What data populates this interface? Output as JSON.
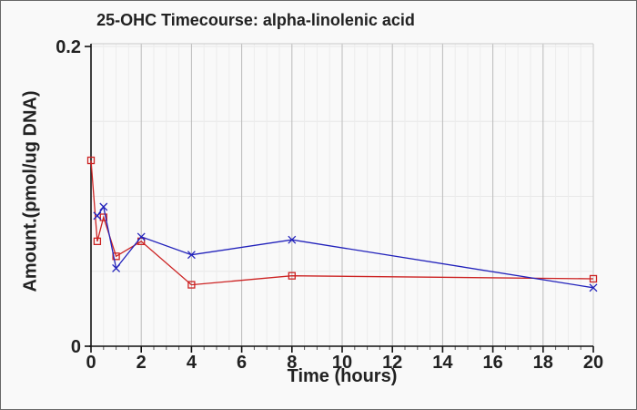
{
  "figure": {
    "background": "#f9f9f9",
    "border_color": "#686868"
  },
  "chart_data": {
    "type": "line",
    "title": "25-OHC Timecourse: alpha-linolenic acid",
    "xlabel": "Time (hours)",
    "ylabel": "Amount.(pmol/ug DNA)",
    "xlim": [
      0,
      20
    ],
    "ylim": [
      0,
      0.2
    ],
    "x_major_ticks": [
      0,
      2,
      4,
      6,
      8,
      10,
      12,
      14,
      16,
      18,
      20
    ],
    "x_minor_tick_step": 0.5,
    "y_ticks": [
      {
        "value": 0,
        "label": "0"
      },
      {
        "value": 0.2,
        "label": "0.2"
      }
    ],
    "y_gridline_step": 0.05,
    "grid": "on",
    "legend": "none",
    "axis_color": "#111111",
    "text_color": "#222222",
    "gridline_major_color": "#bbbbbb",
    "gridline_minor_color": "#ececec",
    "gridline_horizontal_color": "#e8e8e8",
    "series": [
      {
        "name": "red-squares",
        "color": "#cc2222",
        "marker": "open-square",
        "points": [
          [
            0,
            0.124
          ],
          [
            0.25,
            0.07
          ],
          [
            0.5,
            0.086
          ],
          [
            1,
            0.06
          ],
          [
            2,
            0.07
          ],
          [
            4,
            0.041
          ],
          [
            8,
            0.047
          ],
          [
            20,
            0.045
          ]
        ]
      },
      {
        "name": "blue-x",
        "color": "#2222bb",
        "marker": "x",
        "points": [
          [
            0.25,
            0.087
          ],
          [
            0.5,
            0.093
          ],
          [
            1,
            0.052
          ],
          [
            2,
            0.073
          ],
          [
            4,
            0.061
          ],
          [
            8,
            0.071
          ],
          [
            20,
            0.039
          ]
        ]
      }
    ]
  }
}
